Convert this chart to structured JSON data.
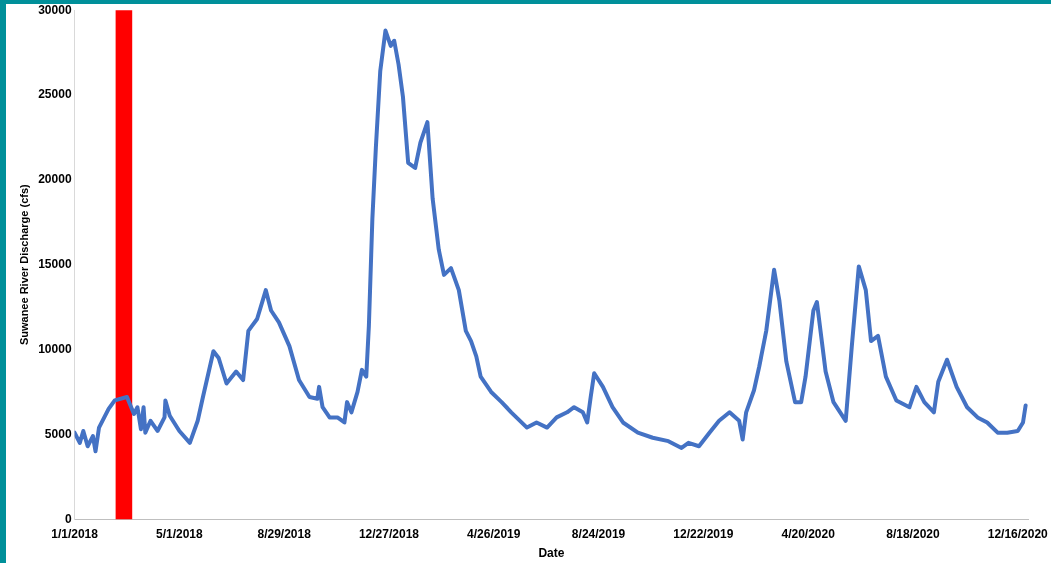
{
  "chart_data": {
    "type": "line",
    "xlabel": "Date",
    "ylabel": "Suwanee River Discharge (cfs)",
    "x": [
      "2018-01-01",
      "2018-01-07",
      "2018-01-11",
      "2018-01-16",
      "2018-01-22",
      "2018-01-25",
      "2018-01-29",
      "2018-02-04",
      "2018-02-09",
      "2018-02-16",
      "2018-03-02",
      "2018-03-10",
      "2018-03-14",
      "2018-03-18",
      "2018-03-21",
      "2018-03-23",
      "2018-03-29",
      "2018-04-06",
      "2018-04-14",
      "2018-04-15",
      "2018-04-20",
      "2018-05-01",
      "2018-05-13",
      "2018-05-22",
      "2018-05-28",
      "2018-06-09",
      "2018-06-15",
      "2018-06-24",
      "2018-07-05",
      "2018-07-13",
      "2018-07-19",
      "2018-07-29",
      "2018-08-08",
      "2018-08-14",
      "2018-08-23",
      "2018-09-04",
      "2018-09-15",
      "2018-09-27",
      "2018-10-06",
      "2018-10-08",
      "2018-10-12",
      "2018-10-20",
      "2018-10-29",
      "2018-11-06",
      "2018-11-09",
      "2018-11-14",
      "2018-11-21",
      "2018-11-26",
      "2018-12-01",
      "2018-12-04",
      "2018-12-08",
      "2018-12-12",
      "2018-12-17",
      "2018-12-23",
      "2018-12-29",
      "2019-01-02",
      "2019-01-07",
      "2019-01-12",
      "2019-01-18",
      "2019-01-26",
      "2019-02-01",
      "2019-02-09",
      "2019-02-15",
      "2019-02-22",
      "2019-02-28",
      "2019-03-08",
      "2019-03-17",
      "2019-03-25",
      "2019-03-31",
      "2019-04-06",
      "2019-04-11",
      "2019-04-23",
      "2019-05-05",
      "2019-05-16",
      "2019-06-03",
      "2019-06-14",
      "2019-06-26",
      "2019-07-07",
      "2019-07-19",
      "2019-07-27",
      "2019-08-06",
      "2019-08-11",
      "2019-08-15",
      "2019-08-19",
      "2019-08-29",
      "2019-09-09",
      "2019-09-21",
      "2019-10-08",
      "2019-10-25",
      "2019-11-12",
      "2019-11-27",
      "2019-12-05",
      "2019-12-17",
      "2019-12-29",
      "2020-01-09",
      "2020-01-21",
      "2020-02-01",
      "2020-02-05",
      "2020-02-09",
      "2020-02-18",
      "2020-02-24",
      "2020-03-03",
      "2020-03-12",
      "2020-03-18",
      "2020-03-26",
      "2020-04-05",
      "2020-04-12",
      "2020-04-17",
      "2020-04-26",
      "2020-04-30",
      "2020-05-10",
      "2020-05-19",
      "2020-06-02",
      "2020-06-09",
      "2020-06-17",
      "2020-06-25",
      "2020-07-01",
      "2020-07-09",
      "2020-07-18",
      "2020-07-30",
      "2020-08-14",
      "2020-08-22",
      "2020-08-31",
      "2020-09-11",
      "2020-09-16",
      "2020-09-26",
      "2020-10-07",
      "2020-10-19",
      "2020-10-31",
      "2020-11-11",
      "2020-11-23",
      "2020-12-04",
      "2020-12-16",
      "2020-12-22",
      "2020-12-25"
    ],
    "series": [
      {
        "color": "#4472c4",
        "values": [
          5100,
          4500,
          5200,
          4300,
          4900,
          4000,
          5400,
          6000,
          6500,
          7000,
          7200,
          6200,
          6600,
          5300,
          6600,
          5100,
          5800,
          5200,
          6000,
          7000,
          6100,
          5200,
          4500,
          5800,
          7200,
          9900,
          9500,
          8000,
          8700,
          8200,
          11100,
          11800,
          13500,
          12300,
          11600,
          10200,
          8200,
          7200,
          7100,
          7800,
          6600,
          6000,
          6000,
          5700,
          6900,
          6300,
          7500,
          8800,
          8400,
          11400,
          17700,
          21900,
          26400,
          28800,
          27900,
          28200,
          26800,
          24900,
          21000,
          20700,
          22200,
          23400,
          18900,
          15900,
          14400,
          14800,
          13500,
          11100,
          10500,
          9600,
          8400,
          7500,
          6900,
          6300,
          5400,
          5700,
          5400,
          6000,
          6300,
          6600,
          6300,
          5700,
          7200,
          8600,
          7800,
          6600,
          5700,
          5100,
          4800,
          4600,
          4200,
          4500,
          4300,
          5100,
          5800,
          6300,
          5800,
          4700,
          6300,
          7600,
          9000,
          11100,
          14700,
          12900,
          9300,
          6900,
          6900,
          8400,
          12300,
          12800,
          8700,
          6900,
          5800,
          10200,
          14900,
          13500,
          10500,
          10800,
          8400,
          7000,
          6600,
          7800,
          6900,
          6300,
          8100,
          9400,
          7800,
          6600,
          6000,
          5700,
          5100,
          5100,
          5200,
          5700,
          6700
        ]
      }
    ],
    "xlim": [
      "2018-01-01",
      "2020-12-28"
    ],
    "xticks": [
      {
        "value": "2018-01-01",
        "label": "1/1/2018"
      },
      {
        "value": "2018-05-01",
        "label": "5/1/2018"
      },
      {
        "value": "2018-08-29",
        "label": "8/29/2018"
      },
      {
        "value": "2018-12-27",
        "label": "12/27/2018"
      },
      {
        "value": "2019-04-26",
        "label": "4/26/2019"
      },
      {
        "value": "2019-08-24",
        "label": "8/24/2019"
      },
      {
        "value": "2019-12-22",
        "label": "12/22/2019"
      },
      {
        "value": "2020-04-20",
        "label": "4/20/2020"
      },
      {
        "value": "2020-08-18",
        "label": "8/18/2020"
      },
      {
        "value": "2020-12-16",
        "label": "12/16/2020"
      }
    ],
    "ylim": [
      0,
      30000
    ],
    "yticks": [
      0,
      5000,
      10000,
      15000,
      20000,
      25000,
      30000
    ],
    "bands": [
      {
        "axis": "x",
        "from": "2018-02-17",
        "to": "2018-03-08",
        "color": "#ff0000"
      }
    ],
    "grid": false,
    "legend": false,
    "marker": "none",
    "line_style": "solid"
  }
}
